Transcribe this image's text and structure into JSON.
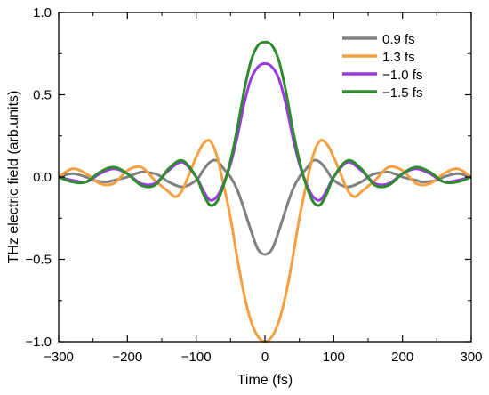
{
  "chart_data": {
    "type": "line",
    "title": "",
    "xlabel": "Time (fs)",
    "ylabel": "THz electric field (arb.units)",
    "xlim": [
      -300,
      300
    ],
    "ylim": [
      -1.0,
      1.0
    ],
    "xticks": [
      -300,
      -200,
      -100,
      0,
      100,
      200,
      300
    ],
    "xtick_labels": [
      "−300",
      "−200",
      "−100",
      "0",
      "100",
      "200",
      "300"
    ],
    "yticks": [
      -1.0,
      -0.5,
      0.0,
      0.5,
      1.0
    ],
    "ytick_labels": [
      "−1.0",
      "−0.5",
      "0.0",
      "0.5",
      "1.0"
    ],
    "grid": false,
    "legend_position": "top-right",
    "series": [
      {
        "name": "0.9 fs",
        "color": "#808080",
        "x": [
          -300,
          -280,
          -260,
          -250,
          -230,
          -220,
          -200,
          -180,
          -160,
          -150,
          -140,
          -120,
          -100,
          -90,
          -80,
          -70,
          -60,
          -50,
          -40,
          -30,
          -20,
          -10,
          0,
          10,
          20,
          30,
          40,
          50,
          60,
          70,
          80,
          90,
          100,
          120,
          140,
          150,
          160,
          180,
          200,
          220,
          230,
          250,
          260,
          280,
          300
        ],
        "y": [
          0.0,
          0.02,
          0.0,
          -0.02,
          -0.03,
          -0.02,
          0.0,
          0.03,
          0.02,
          0.0,
          -0.03,
          -0.06,
          -0.02,
          0.04,
          0.09,
          0.1,
          0.05,
          0.0,
          -0.08,
          -0.2,
          -0.33,
          -0.44,
          -0.47,
          -0.44,
          -0.33,
          -0.2,
          -0.08,
          0.0,
          0.05,
          0.1,
          0.09,
          0.04,
          -0.02,
          -0.06,
          -0.03,
          0.0,
          0.02,
          0.03,
          0.0,
          -0.02,
          -0.03,
          -0.02,
          0.0,
          0.02,
          0.0
        ]
      },
      {
        "name": "1.3 fs",
        "color": "#f5a040",
        "x": [
          -300,
          -280,
          -260,
          -240,
          -220,
          -200,
          -180,
          -160,
          -140,
          -130,
          -120,
          -110,
          -100,
          -90,
          -80,
          -70,
          -60,
          -50,
          -40,
          -30,
          -20,
          -10,
          0,
          10,
          20,
          30,
          40,
          50,
          60,
          70,
          80,
          90,
          100,
          110,
          120,
          130,
          140,
          160,
          180,
          200,
          220,
          240,
          260,
          280,
          300
        ],
        "y": [
          0.0,
          0.05,
          0.02,
          -0.04,
          -0.04,
          0.04,
          0.06,
          -0.02,
          -0.09,
          -0.12,
          -0.08,
          0.02,
          0.12,
          0.2,
          0.22,
          0.13,
          -0.05,
          -0.25,
          -0.5,
          -0.72,
          -0.88,
          -0.97,
          -1.0,
          -0.97,
          -0.88,
          -0.72,
          -0.5,
          -0.25,
          -0.05,
          0.13,
          0.22,
          0.2,
          0.12,
          0.02,
          -0.08,
          -0.12,
          -0.09,
          -0.02,
          0.06,
          0.04,
          -0.04,
          -0.04,
          0.02,
          0.05,
          0.0
        ]
      },
      {
        "name": "−1.0 fs",
        "color": "#9b3ae0",
        "x": [
          -300,
          -280,
          -260,
          -240,
          -220,
          -200,
          -180,
          -160,
          -140,
          -120,
          -100,
          -90,
          -80,
          -70,
          -60,
          -50,
          -40,
          -30,
          -20,
          -10,
          0,
          10,
          20,
          30,
          40,
          50,
          60,
          70,
          80,
          90,
          100,
          120,
          140,
          160,
          180,
          200,
          220,
          240,
          260,
          280,
          300
        ],
        "y": [
          0.0,
          -0.02,
          -0.03,
          0.02,
          0.05,
          0.02,
          -0.04,
          -0.04,
          0.04,
          0.09,
          0.0,
          -0.08,
          -0.14,
          -0.12,
          -0.04,
          0.08,
          0.25,
          0.45,
          0.6,
          0.67,
          0.69,
          0.67,
          0.6,
          0.45,
          0.25,
          0.08,
          -0.04,
          -0.12,
          -0.14,
          -0.08,
          0.0,
          0.09,
          0.04,
          -0.04,
          -0.04,
          0.02,
          0.05,
          0.02,
          -0.03,
          -0.02,
          0.0
        ]
      },
      {
        "name": "−1.5 fs",
        "color": "#2e8b2e",
        "x": [
          -300,
          -280,
          -260,
          -240,
          -220,
          -200,
          -180,
          -160,
          -140,
          -120,
          -100,
          -90,
          -80,
          -70,
          -60,
          -50,
          -40,
          -30,
          -20,
          -10,
          0,
          10,
          20,
          30,
          40,
          50,
          60,
          70,
          80,
          90,
          100,
          120,
          140,
          160,
          180,
          200,
          220,
          240,
          260,
          280,
          300
        ],
        "y": [
          0.0,
          -0.03,
          -0.03,
          0.03,
          0.06,
          0.02,
          -0.05,
          -0.05,
          0.05,
          0.1,
          0.0,
          -0.1,
          -0.17,
          -0.15,
          -0.05,
          0.1,
          0.3,
          0.53,
          0.71,
          0.8,
          0.82,
          0.8,
          0.71,
          0.53,
          0.3,
          0.1,
          -0.05,
          -0.15,
          -0.17,
          -0.1,
          0.0,
          0.1,
          0.05,
          -0.05,
          -0.05,
          0.02,
          0.06,
          0.03,
          -0.03,
          -0.03,
          0.0
        ]
      }
    ]
  }
}
